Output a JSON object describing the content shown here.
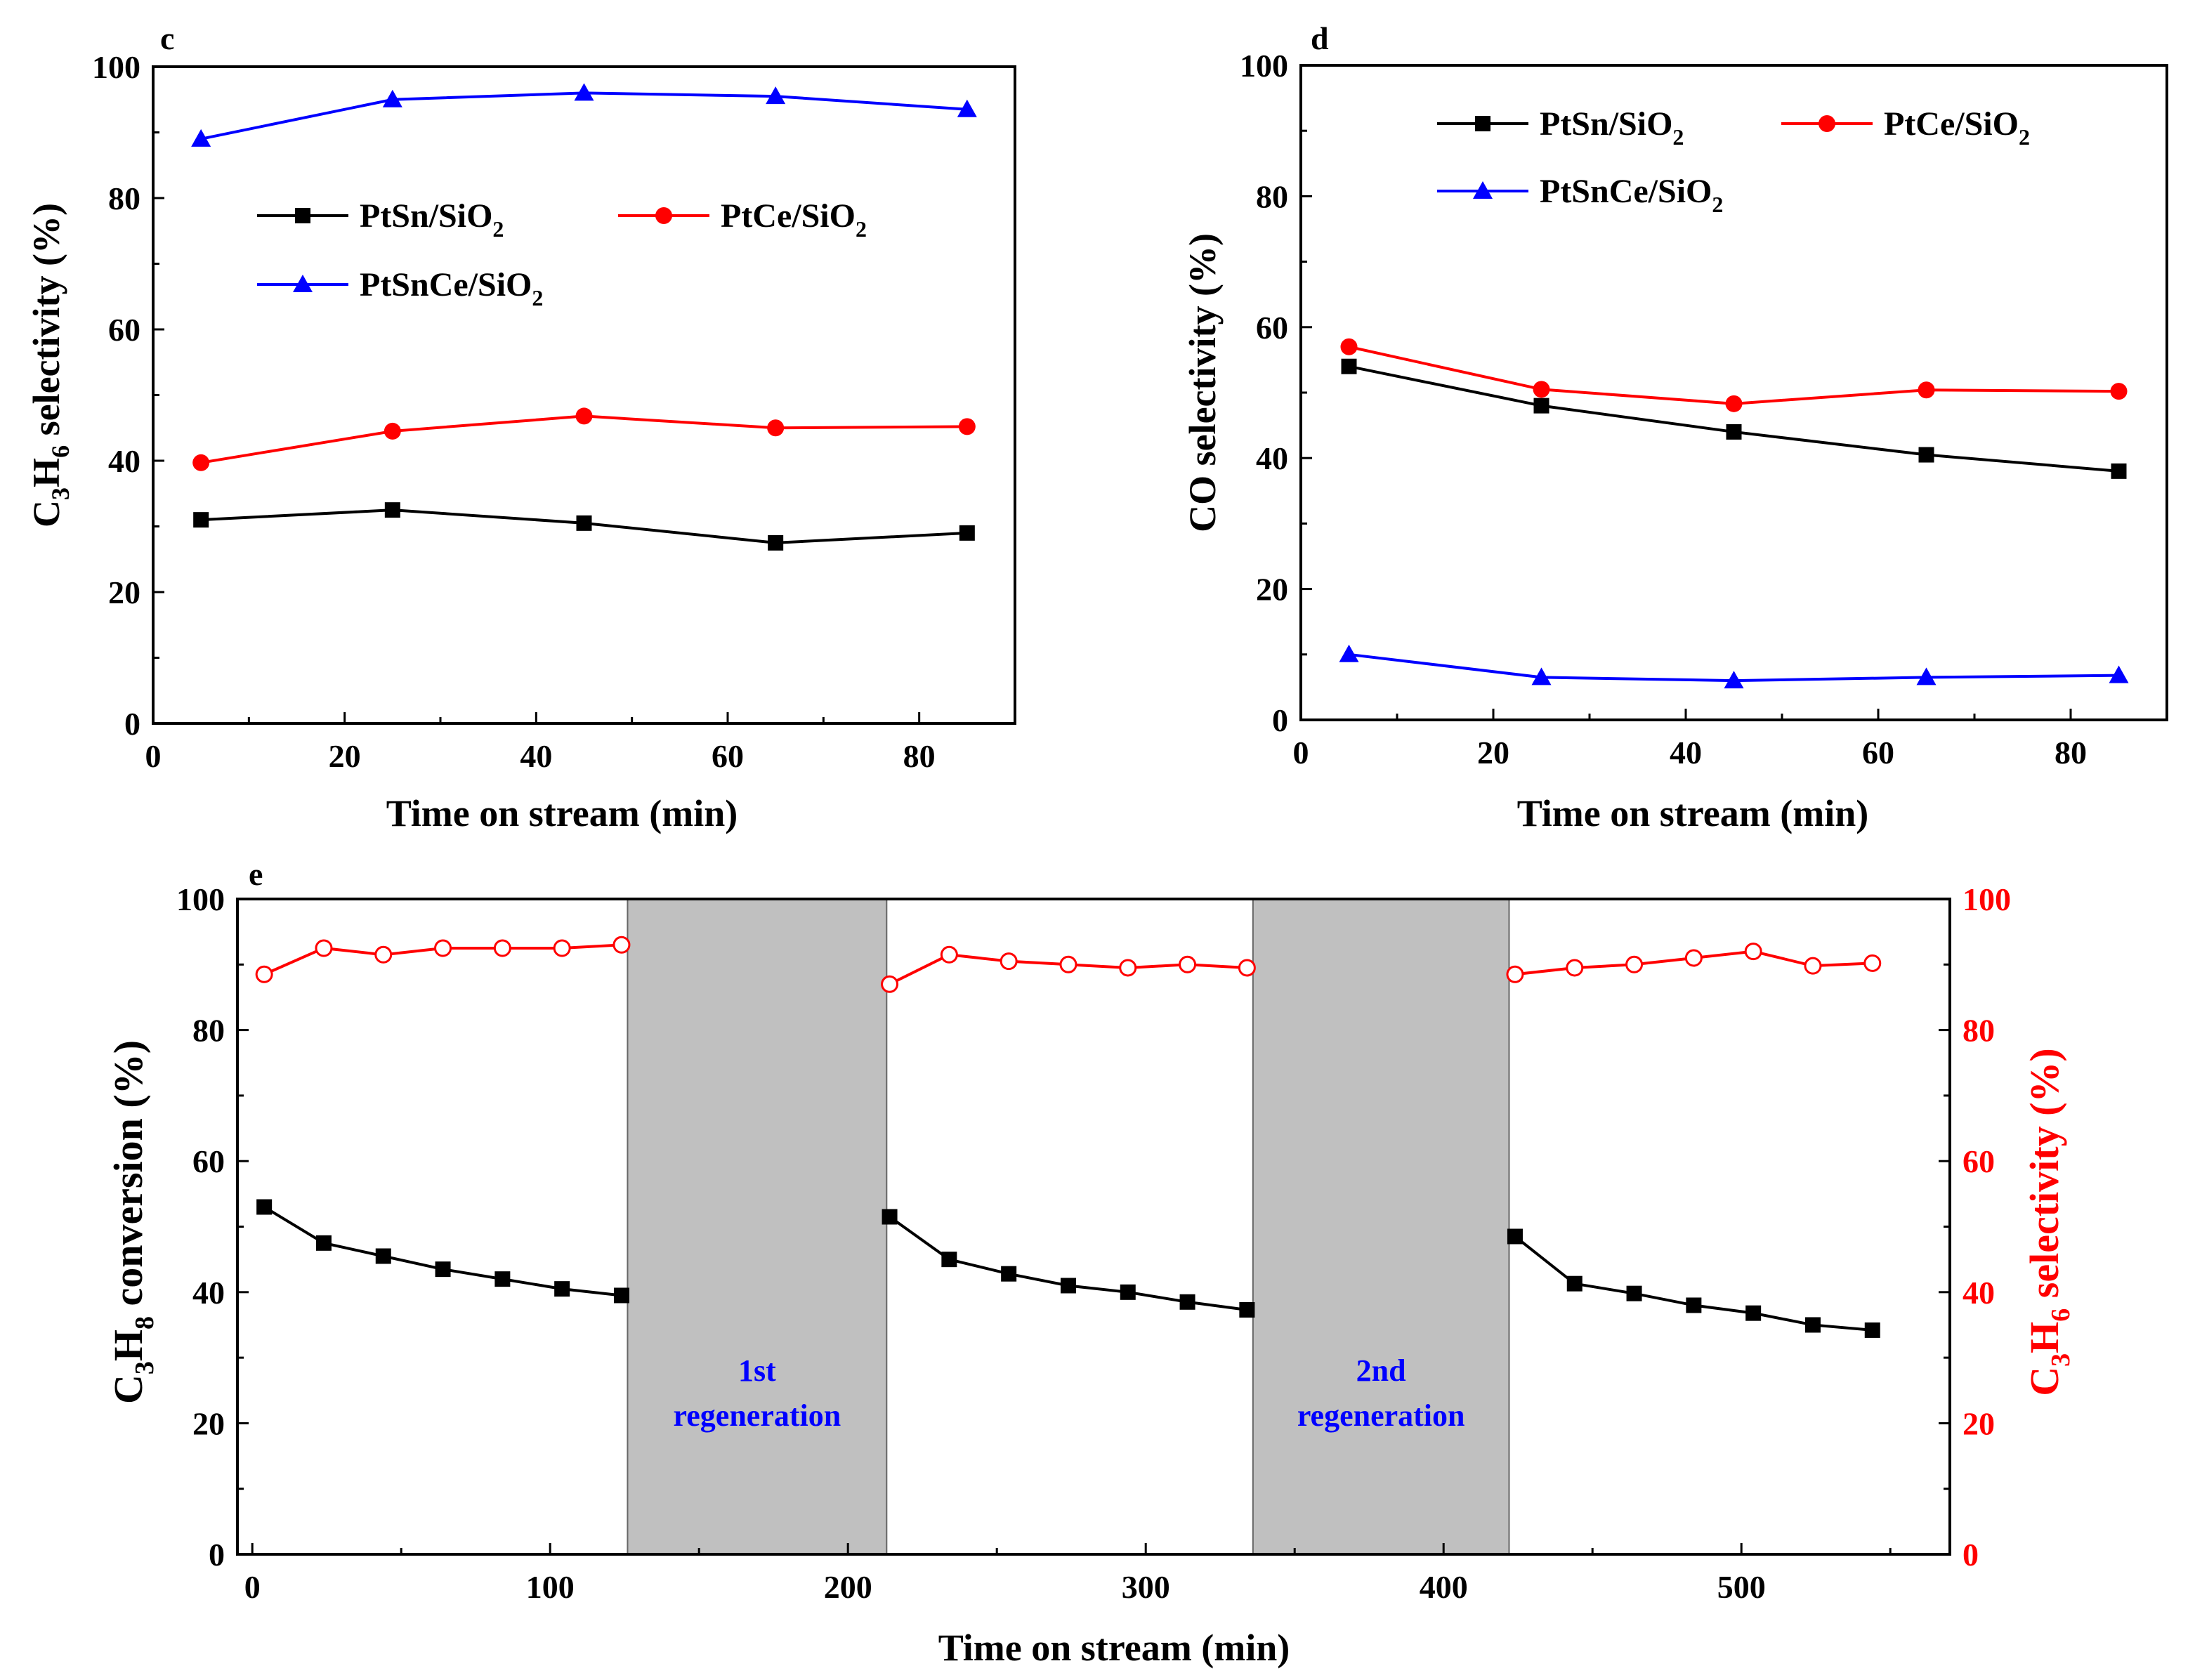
{
  "chart_data": [
    {
      "id": "c",
      "type": "line",
      "panel_label": "c",
      "xlabel": "Time on stream (min)",
      "ylabel": {
        "main": "C",
        "sub1": "3",
        "mid": "H",
        "sub2": "6",
        "rest": " selectivity (%)"
      },
      "xlim": [
        0,
        90
      ],
      "ylim": [
        0,
        100
      ],
      "xticks": [
        "0",
        "20",
        "40",
        "60",
        "80"
      ],
      "yticks": [
        "0",
        "20",
        "40",
        "60",
        "80",
        "100"
      ],
      "x": [
        5,
        25,
        45,
        65,
        85
      ],
      "series": [
        {
          "name": "PtSn/SiO2",
          "label_main": "PtSn/SiO",
          "label_sub": "2",
          "color": "#000000",
          "marker": "square",
          "values": [
            31,
            32.5,
            30.5,
            27.5,
            29
          ]
        },
        {
          "name": "PtCe/SiO2",
          "label_main": "PtCe/SiO",
          "label_sub": "2",
          "color": "#ff0000",
          "marker": "circle",
          "values": [
            39.7,
            44.5,
            46.8,
            45,
            45.2
          ]
        },
        {
          "name": "PtSnCe/SiO2",
          "label_main": "PtSnCe/SiO",
          "label_sub": "2",
          "color": "#0000ff",
          "marker": "triangle",
          "values": [
            89,
            95,
            96,
            95.5,
            93.5
          ]
        }
      ]
    },
    {
      "id": "d",
      "type": "line",
      "panel_label": "d",
      "xlabel": "Time on stream (min)",
      "ylabel": {
        "main": "CO selectivity (%)"
      },
      "xlim": [
        0,
        90
      ],
      "ylim": [
        0,
        100
      ],
      "xticks": [
        "0",
        "20",
        "40",
        "60",
        "80"
      ],
      "yticks": [
        "0",
        "20",
        "40",
        "60",
        "80",
        "100"
      ],
      "x": [
        5,
        25,
        45,
        65,
        85
      ],
      "series": [
        {
          "name": "PtSn/SiO2",
          "label_main": "PtSn/SiO",
          "label_sub": "2",
          "color": "#000000",
          "marker": "square",
          "values": [
            54,
            48,
            44,
            40.5,
            38
          ]
        },
        {
          "name": "PtCe/SiO2",
          "label_main": "PtCe/SiO",
          "label_sub": "2",
          "color": "#ff0000",
          "marker": "circle",
          "values": [
            57,
            50.5,
            48.3,
            50.4,
            50.2
          ]
        },
        {
          "name": "PtSnCe/SiO2",
          "label_main": "PtSnCe/SiO",
          "label_sub": "2",
          "color": "#0000ff",
          "marker": "triangle",
          "values": [
            10,
            6.5,
            6,
            6.5,
            6.8
          ]
        }
      ]
    },
    {
      "id": "e",
      "type": "line",
      "panel_label": "e",
      "xlabel": "Time on stream (min)",
      "ylabel_left": {
        "main": "C",
        "sub1": "3",
        "mid": "H",
        "sub2": "8",
        "rest": " conversion (%)"
      },
      "ylabel_right": {
        "main": "C",
        "sub1": "3",
        "mid": "H",
        "sub2": "6",
        "rest": " selectivity (%)"
      },
      "xlim": [
        -5,
        570
      ],
      "ylim": [
        0,
        100
      ],
      "xticks": [
        "0",
        "100",
        "200",
        "300",
        "400",
        "500"
      ],
      "yticks": [
        "0",
        "20",
        "40",
        "60",
        "80",
        "100"
      ],
      "regions": [
        {
          "start": 126,
          "end": 213,
          "line1": "1st",
          "line2": "regeneration",
          "fill": "#c0c0c0",
          "text_color": "#0000ff"
        },
        {
          "start": 336,
          "end": 422,
          "line1": "2nd",
          "line2": "regeneration",
          "fill": "#c0c0c0",
          "text_color": "#0000ff"
        }
      ],
      "series": [
        {
          "name": "C3H8 conversion",
          "axis": "left",
          "color": "#000000",
          "marker": "square",
          "segments": [
            {
              "x": [
                4,
                24,
                44,
                64,
                84,
                104,
                124
              ],
              "y": [
                53,
                47.5,
                45.5,
                43.5,
                42,
                40.5,
                39.5
              ]
            },
            {
              "x": [
                214,
                234,
                254,
                274,
                294,
                314,
                334
              ],
              "y": [
                51.5,
                45,
                42.8,
                41,
                40,
                38.5,
                37.3
              ]
            },
            {
              "x": [
                424,
                444,
                464,
                484,
                504,
                524,
                544
              ],
              "y": [
                48.5,
                41.3,
                39.8,
                38,
                36.8,
                35,
                34.2
              ]
            }
          ]
        },
        {
          "name": "C3H6 selectivity",
          "axis": "right",
          "color": "#ff0000",
          "marker": "open-circle",
          "segments": [
            {
              "x": [
                4,
                24,
                44,
                64,
                84,
                104,
                124
              ],
              "y": [
                88.5,
                92.5,
                91.5,
                92.5,
                92.5,
                92.5,
                93
              ]
            },
            {
              "x": [
                214,
                234,
                254,
                274,
                294,
                314,
                334
              ],
              "y": [
                87,
                91.5,
                90.5,
                90,
                89.5,
                90,
                89.5
              ]
            },
            {
              "x": [
                424,
                444,
                464,
                484,
                504,
                524,
                544
              ],
              "y": [
                88.5,
                89.5,
                90,
                91,
                92,
                89.8,
                90.2
              ]
            }
          ]
        }
      ]
    }
  ]
}
